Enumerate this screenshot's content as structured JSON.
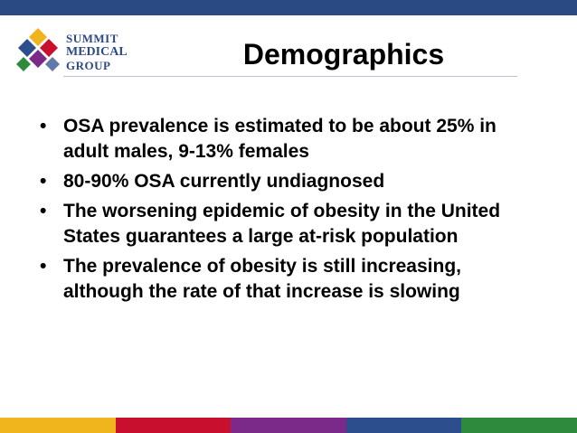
{
  "header": {
    "logo": {
      "line1": "SUMMIT",
      "line2": "MEDICAL",
      "line3": "GROUP"
    },
    "title": "Demographics"
  },
  "bullets": [
    "OSA prevalence is estimated to be about 25% in adult males, 9-13% females",
    "80-90% OSA currently undiagnosed",
    "The worsening epidemic of obesity in the United States guarantees a large at-risk population",
    "The prevalence of obesity is still increasing, although the rate of that increase is slowing"
  ],
  "bullet_marker": "•",
  "colors": {
    "top_bar": "#2a4a84",
    "bottom_bar": [
      "#f0b51c",
      "#c8102e",
      "#7b2a8a",
      "#2c4e8c",
      "#2e8b3e"
    ]
  }
}
